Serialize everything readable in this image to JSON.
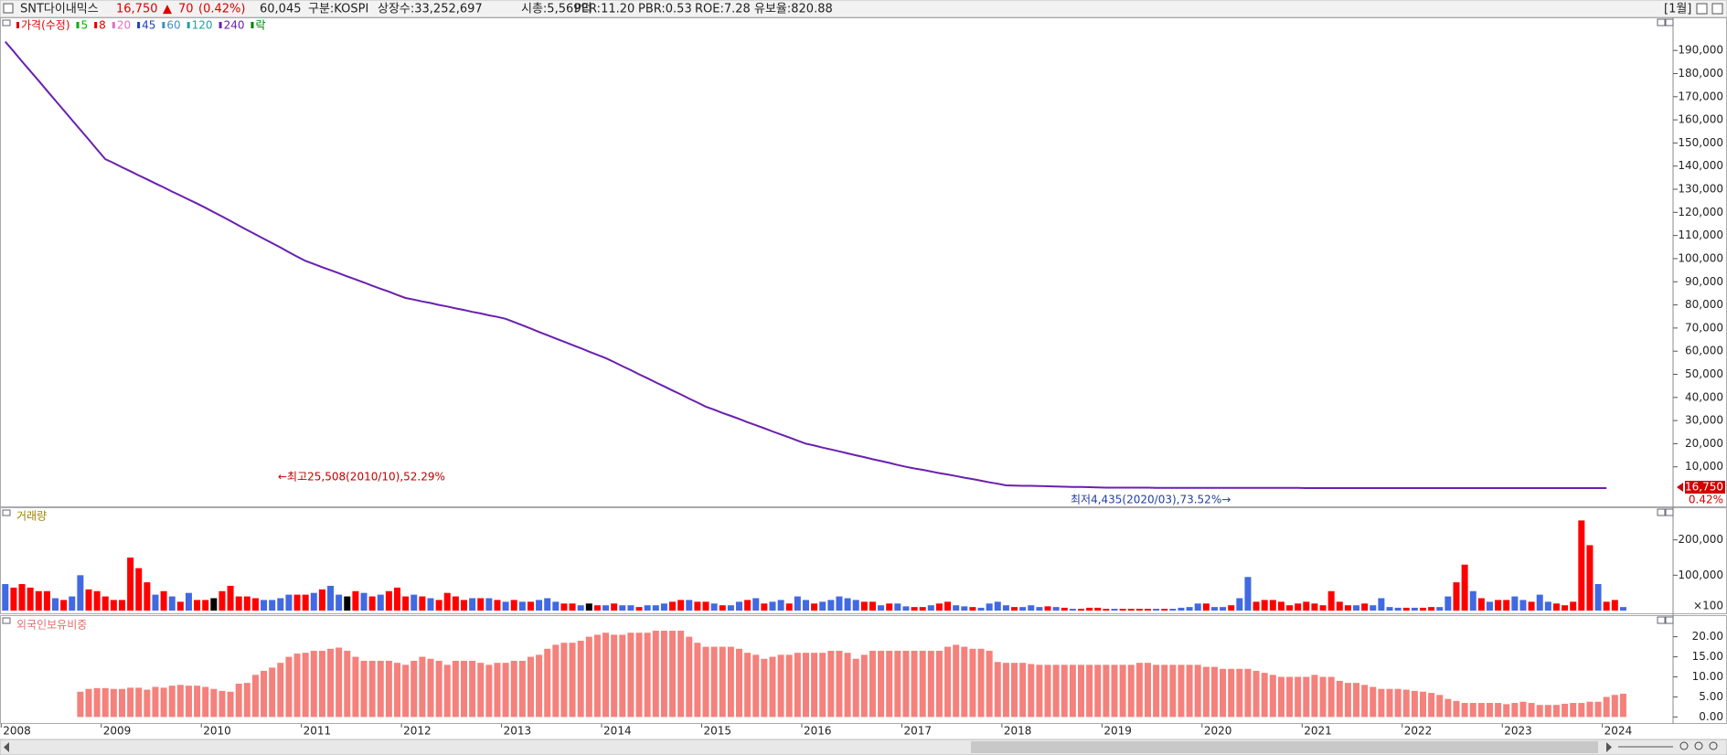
{
  "header": {
    "name": "SNT다이내믹스",
    "price": "16,750",
    "change_sign": "▲",
    "change": "70",
    "change_pct": "(0.42%)",
    "volume": "60,045",
    "market": "구분:KOSPI",
    "shares": "상장수:33,252,697",
    "cap": "시총:5,569억",
    "per": "PER:11.20",
    "pbr": "PBR:0.53",
    "roe": "ROE:7.28",
    "reserve": "유보율:820.88",
    "period": "[1월]"
  },
  "chart_data": [
    {
      "type": "line",
      "legend": [
        {
          "name": "가격(수정)",
          "color": "#e00000"
        },
        {
          "name": "5",
          "color": "#00b000"
        },
        {
          "name": "8",
          "color": "#e00000"
        },
        {
          "name": "20",
          "color": "#e070c0"
        },
        {
          "name": "45",
          "color": "#2040c0"
        },
        {
          "name": "60",
          "color": "#4090c0"
        },
        {
          "name": "120",
          "color": "#20a0a0"
        },
        {
          "name": "락",
          "color": "#008000"
        }
      ],
      "series": [
        {
          "name": "240",
          "color": "#6a1fb0",
          "values": [
            193800,
            189600,
            185300,
            181100,
            176900,
            172600,
            168400,
            164200,
            159900,
            155700,
            151500,
            147200,
            143000,
            141300,
            139500,
            137800,
            136000,
            134300,
            132500,
            130800,
            129000,
            127300,
            125500,
            123800,
            122000,
            120100,
            118200,
            116300,
            114300,
            112400,
            110500,
            108600,
            106700,
            104800,
            102800,
            100900,
            99000,
            97700,
            96300,
            95000,
            93700,
            92300,
            91000,
            89700,
            88300,
            87000,
            85700,
            84300,
            83000,
            82300,
            81500,
            80800,
            80000,
            79300,
            78500,
            77800,
            77000,
            76300,
            75500,
            74800,
            74000,
            72600,
            71200,
            69800,
            68300,
            66900,
            65500,
            64100,
            62700,
            61300,
            59800,
            58400,
            57000,
            55300,
            53500,
            51800,
            50000,
            48300,
            46500,
            44800,
            43000,
            41300,
            39500,
            37800,
            36000,
            34700,
            33300,
            32000,
            30700,
            29300,
            28000,
            26700,
            25300,
            24000,
            22700,
            21300,
            20000,
            19200,
            18300,
            17500,
            16700,
            15800,
            15000,
            14200,
            13300,
            12500,
            11700,
            10800,
            10000,
            9300,
            8700,
            8000,
            7300,
            6700,
            6000,
            5300,
            4700,
            4000,
            3300,
            2700,
            2000,
            1900,
            1800,
            1800,
            1700,
            1600,
            1500,
            1400,
            1300,
            1300,
            1200,
            1100,
            1000,
            1000,
            1000,
            1000,
            1000,
            1000,
            900,
            900,
            900,
            900,
            900,
            900,
            900,
            900,
            900,
            900,
            900,
            900,
            900,
            900,
            900,
            900,
            900,
            900,
            800,
            800,
            800,
            800,
            800,
            800,
            800,
            800,
            800,
            800,
            800,
            800,
            800,
            800,
            800,
            800,
            800,
            800,
            800,
            800,
            800,
            800,
            800,
            800,
            800,
            800,
            800,
            800,
            800,
            800,
            800,
            800,
            800,
            800,
            800,
            800,
            800
          ]
        }
      ],
      "ylim": [
        -7100,
        204300
      ],
      "yticks": [
        {
          "value": 10000,
          "label": "10,000"
        },
        {
          "value": 20000,
          "label": "20,000"
        },
        {
          "value": 30000,
          "label": "30,000"
        },
        {
          "value": 40000,
          "label": "40,000"
        },
        {
          "value": 50000,
          "label": "50,000"
        },
        {
          "value": 60000,
          "label": "60,000"
        },
        {
          "value": 70000,
          "label": "70,000"
        },
        {
          "value": 80000,
          "label": "80,000"
        },
        {
          "value": 90000,
          "label": "90,000"
        },
        {
          "value": 100000,
          "label": "100,000"
        },
        {
          "value": 110000,
          "label": "110,000"
        },
        {
          "value": 120000,
          "label": "120,000"
        },
        {
          "value": 130000,
          "label": "130,000"
        },
        {
          "value": 140000,
          "label": "140,000"
        },
        {
          "value": 150000,
          "label": "150,000"
        },
        {
          "value": 160000,
          "label": "160,000"
        },
        {
          "value": 170000,
          "label": "170,000"
        },
        {
          "value": 180000,
          "label": "180,000"
        },
        {
          "value": 190000,
          "label": "190,000"
        }
      ],
      "annotations": [
        "←최고25,508(2010/10),52.29%",
        "최저4,435(2020/03),73.52%→"
      ],
      "last_price_label": "16,750",
      "last_change_label": "0.42%"
    },
    {
      "type": "bar",
      "title": "거래량",
      "values": [
        75000,
        65000,
        75000,
        65000,
        55000,
        55000,
        35000,
        30000,
        40000,
        100000,
        60000,
        55000,
        40000,
        30000,
        30000,
        150000,
        120000,
        80000,
        45000,
        55000,
        40000,
        25000,
        50000,
        30000,
        30000,
        35000,
        55000,
        70000,
        40000,
        40000,
        35000,
        30000,
        30000,
        35000,
        45000,
        45000,
        45000,
        50000,
        60000,
        70000,
        45000,
        40000,
        55000,
        50000,
        40000,
        45000,
        55000,
        65000,
        40000,
        45000,
        40000,
        35000,
        30000,
        50000,
        40000,
        30000,
        35000,
        35000,
        35000,
        30000,
        25000,
        30000,
        25000,
        25000,
        30000,
        35000,
        25000,
        20000,
        20000,
        15000,
        20000,
        15000,
        15000,
        20000,
        15000,
        15000,
        10000,
        15000,
        15000,
        20000,
        25000,
        30000,
        30000,
        25000,
        25000,
        20000,
        15000,
        15000,
        25000,
        30000,
        35000,
        20000,
        25000,
        30000,
        20000,
        40000,
        30000,
        20000,
        25000,
        30000,
        40000,
        35000,
        30000,
        25000,
        25000,
        15000,
        20000,
        20000,
        12000,
        10000,
        10000,
        15000,
        20000,
        25000,
        15000,
        12000,
        10000,
        8000,
        20000,
        25000,
        15000,
        10000,
        10000,
        15000,
        10000,
        12000,
        10000,
        8000,
        5000,
        5000,
        8000,
        8000,
        5000,
        5000,
        5000,
        5000,
        5000,
        5000,
        5000,
        5000,
        5000,
        8000,
        10000,
        20000,
        20000,
        10000,
        10000,
        15000,
        35000,
        95000,
        25000,
        30000,
        30000,
        25000,
        15000,
        20000,
        25000,
        20000,
        15000,
        55000,
        25000,
        15000,
        15000,
        20000,
        15000,
        35000,
        10000,
        8000,
        8000,
        8000,
        8000,
        10000,
        10000,
        40000,
        80000,
        130000,
        55000,
        35000,
        25000,
        30000,
        30000,
        40000,
        30000,
        25000,
        45000,
        25000,
        20000,
        15000,
        25000,
        255000,
        185000,
        75000,
        25000,
        30000,
        10000
      ],
      "colors": [
        "royalblue",
        "red",
        "red",
        "red",
        "red",
        "red",
        "royalblue",
        "red",
        "royalblue",
        "royalblue",
        "red",
        "red",
        "red",
        "red",
        "red",
        "red",
        "red",
        "red",
        "royalblue",
        "red",
        "royalblue",
        "red",
        "royalblue",
        "red",
        "red",
        "black",
        "red",
        "red",
        "red",
        "red",
        "red",
        "royalblue",
        "royalblue",
        "royalblue",
        "royalblue",
        "red",
        "red",
        "royalblue",
        "red",
        "royalblue",
        "royalblue",
        "black",
        "red",
        "royalblue",
        "red",
        "royalblue",
        "red",
        "red",
        "red",
        "royalblue",
        "red",
        "royalblue",
        "red",
        "red",
        "red",
        "red",
        "royalblue",
        "red",
        "royalblue",
        "red",
        "royalblue",
        "red",
        "royalblue",
        "red",
        "royalblue",
        "royalblue",
        "royalblue",
        "red",
        "red",
        "royalblue",
        "black",
        "red",
        "royalblue",
        "red",
        "royalblue",
        "royalblue",
        "red",
        "royalblue",
        "royalblue",
        "royalblue",
        "red",
        "red",
        "royalblue",
        "red",
        "red",
        "royalblue",
        "red",
        "royalblue",
        "royalblue",
        "red",
        "royalblue",
        "red",
        "royalblue",
        "royalblue",
        "red",
        "royalblue",
        "royalblue",
        "red",
        "royalblue",
        "royalblue",
        "royalblue",
        "royalblue",
        "royalblue",
        "red",
        "red",
        "royalblue",
        "red",
        "royalblue",
        "royalblue",
        "red",
        "red",
        "royalblue",
        "red",
        "red",
        "royalblue",
        "royalblue",
        "red",
        "royalblue",
        "royalblue",
        "royalblue",
        "royalblue",
        "red",
        "royalblue",
        "royalblue",
        "royalblue",
        "red",
        "royalblue",
        "red",
        "royalblue",
        "red",
        "red",
        "red",
        "red",
        "royalblue",
        "red",
        "red",
        "red",
        "red",
        "royalblue",
        "red",
        "royalblue",
        "royalblue",
        "royalblue",
        "royalblue",
        "red",
        "royalblue",
        "royalblue",
        "red",
        "royalblue",
        "royalblue",
        "red",
        "red",
        "red",
        "red",
        "red",
        "red",
        "red",
        "red",
        "red",
        "red",
        "red",
        "red",
        "royalblue",
        "red",
        "royalblue",
        "royalblue",
        "royalblue",
        "royalblue",
        "red",
        "royalblue",
        "red",
        "red",
        "royalblue",
        "royalblue",
        "red",
        "red",
        "royalblue",
        "red",
        "royalblue",
        "red",
        "red",
        "royalblue",
        "royalblue",
        "red",
        "royalblue",
        "royalblue",
        "red",
        "red",
        "red",
        "red",
        "red",
        "royalblue",
        "red",
        "red",
        "royalblue"
      ],
      "ylim": [
        0,
        287000
      ],
      "yticks": [
        {
          "value": 100000,
          "label": "100,000"
        },
        {
          "value": 200000,
          "label": "200,000"
        }
      ],
      "unit_label": "×100"
    },
    {
      "type": "bar",
      "title": "외국인보유비중",
      "color": "#f4817c",
      "values": [
        0,
        0,
        0,
        0,
        0,
        0,
        0,
        0,
        0,
        6.3,
        7,
        7.2,
        7.2,
        7,
        7,
        7.3,
        7.3,
        6.8,
        7.5,
        7.3,
        7.8,
        8,
        7.8,
        7.8,
        7.5,
        7,
        6.5,
        6.3,
        8.3,
        8.5,
        10.5,
        11.5,
        12.3,
        13.5,
        15,
        15.8,
        16,
        16.5,
        16.5,
        17,
        17.3,
        16.5,
        15,
        14,
        14,
        14,
        14,
        13.5,
        13,
        14,
        15,
        14.5,
        14,
        13,
        14,
        14,
        14,
        13.5,
        13,
        13.5,
        13.5,
        14,
        14,
        15,
        15.5,
        17,
        18,
        18.5,
        18.5,
        19,
        20,
        20.5,
        21,
        20.5,
        20.5,
        21,
        21,
        21,
        21.5,
        21.5,
        21.5,
        21.5,
        20,
        18.5,
        17.5,
        17.5,
        17.5,
        17.5,
        17,
        16,
        15.5,
        14.5,
        15,
        15.5,
        15.5,
        16,
        16,
        16,
        16,
        16.5,
        16.5,
        16,
        14.5,
        15.5,
        16.5,
        16.5,
        16.5,
        16.5,
        16.5,
        16.5,
        16.5,
        16.5,
        16.5,
        17.5,
        18,
        17.5,
        17,
        17,
        16.5,
        13.7,
        13.5,
        13.5,
        13.5,
        13.2,
        13,
        13,
        13,
        13,
        13,
        13,
        13,
        13,
        13,
        13,
        13,
        13,
        13.5,
        13.5,
        13,
        13,
        13,
        13,
        13,
        13,
        12.5,
        12.5,
        12,
        12,
        12,
        12,
        11.5,
        11,
        10.5,
        10,
        10,
        10,
        10,
        10.5,
        10,
        10,
        9,
        8.5,
        8.5,
        8,
        7.5,
        7,
        7,
        7,
        6.8,
        6.5,
        6.3,
        6,
        5.5,
        4.5,
        4,
        3.5,
        3.5,
        3.5,
        3.5,
        3.5,
        3.2,
        3.5,
        3.8,
        3.5,
        3,
        3,
        3,
        3.3,
        3.5,
        3.5,
        3.8,
        3.8,
        5,
        5.5,
        5.8
      ],
      "categories": [
        "2008",
        null,
        null,
        null,
        null,
        null,
        null,
        null,
        null,
        null,
        null,
        null,
        "2009",
        null,
        null,
        null,
        null,
        null,
        null,
        null,
        null,
        null,
        null,
        null,
        "2010",
        null,
        null,
        null,
        null,
        null,
        null,
        null,
        null,
        null,
        null,
        null,
        "2011",
        null,
        null,
        null,
        null,
        null,
        null,
        null,
        null,
        null,
        null,
        null,
        "2012",
        null,
        null,
        null,
        null,
        null,
        null,
        null,
        null,
        null,
        null,
        null,
        "2013",
        null,
        null,
        null,
        null,
        null,
        null,
        null,
        null,
        null,
        null,
        null,
        "2014",
        null,
        null,
        null,
        null,
        null,
        null,
        null,
        null,
        null,
        null,
        null,
        "2015",
        null,
        null,
        null,
        null,
        null,
        null,
        null,
        null,
        null,
        null,
        null,
        "2016",
        null,
        null,
        null,
        null,
        null,
        null,
        null,
        null,
        null,
        null,
        null,
        "2017",
        null,
        null,
        null,
        null,
        null,
        null,
        null,
        null,
        null,
        null,
        null,
        "2018",
        null,
        null,
        null,
        null,
        null,
        null,
        null,
        null,
        null,
        null,
        null,
        "2019",
        null,
        null,
        null,
        null,
        null,
        null,
        null,
        null,
        null,
        null,
        null,
        "2020",
        null,
        null,
        null,
        null,
        null,
        null,
        null,
        null,
        null,
        null,
        null,
        "2021",
        null,
        null,
        null,
        null,
        null,
        null,
        null,
        null,
        null,
        null,
        null,
        "2022",
        null,
        null,
        null,
        null,
        null,
        null,
        null,
        null,
        null,
        null,
        null,
        "2023",
        null,
        null,
        null,
        null,
        null,
        null,
        null,
        null,
        null,
        null,
        null,
        "2024",
        null,
        null
      ],
      "ylim": [
        -1.5,
        24.7
      ],
      "yticks": [
        {
          "value": 0,
          "label": "0.00"
        },
        {
          "value": 5,
          "label": "5.00"
        },
        {
          "value": 10,
          "label": "10.00"
        },
        {
          "value": 15,
          "label": "15.00"
        },
        {
          "value": 20,
          "label": "20.00"
        }
      ]
    }
  ]
}
